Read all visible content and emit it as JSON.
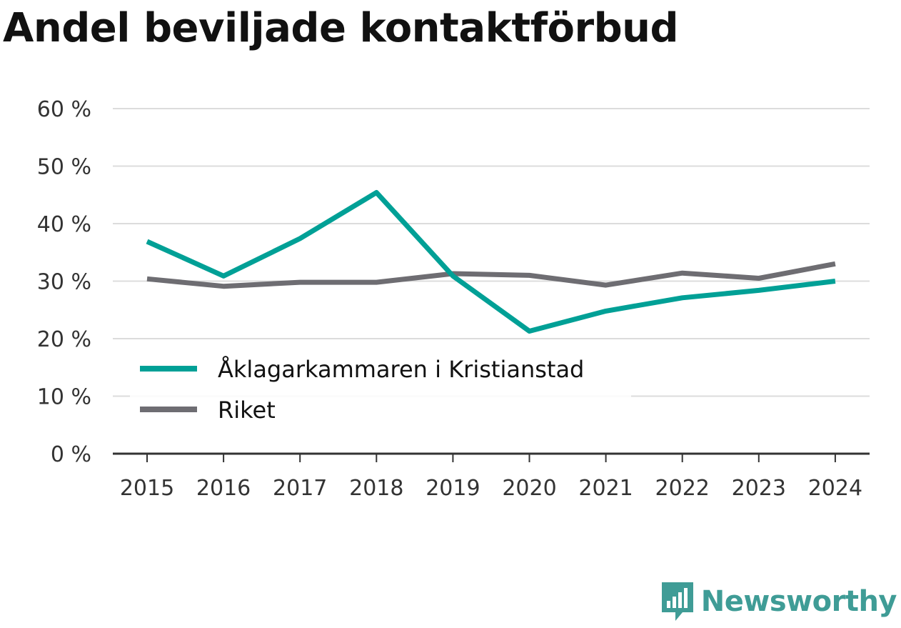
{
  "chart_data": {
    "type": "line",
    "title": "Andel beviljade kontaktförbud",
    "xlabel": "",
    "ylabel": "",
    "x": [
      "2015",
      "2016",
      "2017",
      "2018",
      "2019",
      "2020",
      "2021",
      "2022",
      "2023",
      "2024"
    ],
    "y_ticks": [
      "0 %",
      "10 %",
      "20 %",
      "30 %",
      "40 %",
      "50 %",
      "60 %"
    ],
    "ylim": [
      0,
      60
    ],
    "grid": true,
    "legend_position": "bottom-left",
    "series": [
      {
        "name": "Åklagarkammaren i Kristianstad",
        "color": "#00a096",
        "values": [
          36.9,
          30.9,
          37.4,
          45.4,
          30.9,
          21.3,
          24.8,
          27.1,
          28.4,
          30.0
        ]
      },
      {
        "name": "Riket",
        "color": "#6e6d72",
        "values": [
          30.4,
          29.1,
          29.8,
          29.8,
          31.3,
          31.0,
          29.3,
          31.4,
          30.5,
          33.0
        ]
      }
    ]
  },
  "brand": {
    "name": "Newsworthy",
    "logo_icon": "bar-chart-speech-bubble-icon",
    "color": "#3f9c96"
  }
}
